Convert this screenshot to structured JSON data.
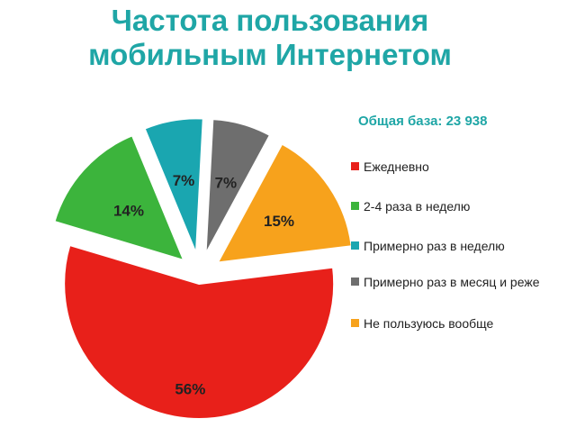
{
  "chart_data": {
    "type": "pie",
    "title_lines": [
      "Частота пользования",
      "мобильным Интернетом"
    ],
    "base_label": "Общая база: 23 938",
    "slices": [
      {
        "label": "Ежедневно",
        "value": 56,
        "value_label": "56%",
        "color": "#e8201a"
      },
      {
        "label": "2-4 раза в неделю",
        "value": 14,
        "value_label": "14%",
        "color": "#3cb43c"
      },
      {
        "label": "Примерно раз в неделю",
        "value": 7,
        "value_label": "7%",
        "color": "#1aa6b0"
      },
      {
        "label": "Примерно раз в месяц и реже",
        "value": 7,
        "value_label": "7%",
        "color": "#6e6e6e"
      },
      {
        "label": "Не пользуюсь вообще",
        "value": 15,
        "value_label": "15%",
        "color": "#f7a21c"
      }
    ],
    "legend_position": "right"
  }
}
